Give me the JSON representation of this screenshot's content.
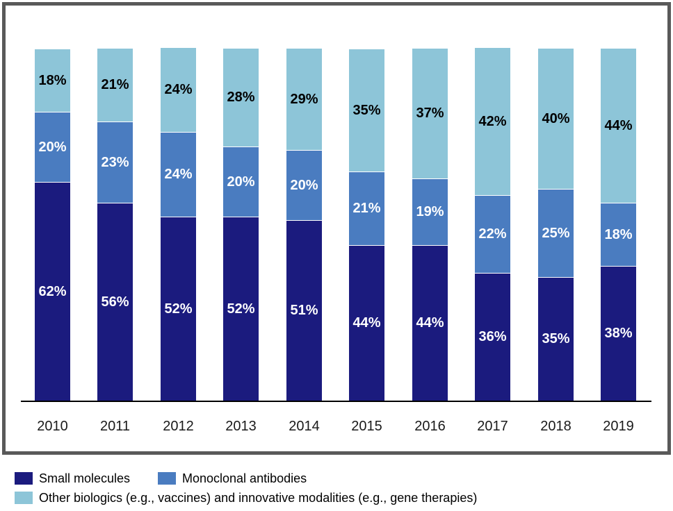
{
  "chart_data": {
    "type": "bar",
    "stacked": true,
    "title": "",
    "xlabel": "",
    "ylabel": "",
    "ylim": [
      0,
      100
    ],
    "grid": false,
    "legend_position": "bottom",
    "value_suffix": "%",
    "categories": [
      "2010",
      "2011",
      "2012",
      "2013",
      "2014",
      "2015",
      "2016",
      "2017",
      "2018",
      "2019"
    ],
    "series": [
      {
        "name": "Small molecules",
        "color": "#1B1B7E",
        "label_color": "#FFFFFF",
        "values": [
          62,
          56,
          52,
          52,
          51,
          44,
          44,
          36,
          35,
          38
        ]
      },
      {
        "name": "Monoclonal antibodies",
        "color": "#4A7CC0",
        "label_color": "#FFFFFF",
        "values": [
          20,
          23,
          24,
          20,
          20,
          21,
          19,
          22,
          25,
          18
        ]
      },
      {
        "name": "Other biologics (e.g., vaccines) and innovative modalities (e.g., gene therapies)",
        "color": "#8DC5D8",
        "label_color": "#000000",
        "values": [
          18,
          21,
          24,
          28,
          29,
          35,
          37,
          42,
          40,
          44
        ]
      }
    ],
    "axis_color": "#000000",
    "frame_color": "#595959"
  }
}
